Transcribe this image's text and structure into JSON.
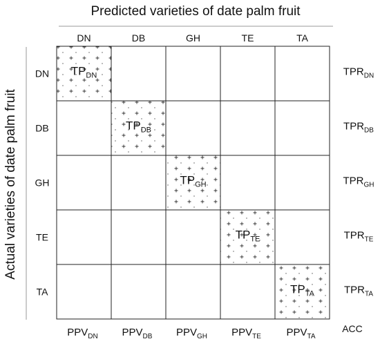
{
  "diagram": {
    "top_title": "Predicted varieties of date palm fruit",
    "side_title": "Actual varieties of date palm fruit",
    "classes": [
      "DN",
      "DB",
      "GH",
      "TE",
      "TA"
    ],
    "tp_prefix": "TP",
    "tpr_prefix": "TPR",
    "ppv_prefix": "PPV",
    "acc_label": "ACC",
    "diagonal_subscripts": [
      "DN",
      "DB",
      "GH",
      "TE",
      "TA"
    ]
  }
}
